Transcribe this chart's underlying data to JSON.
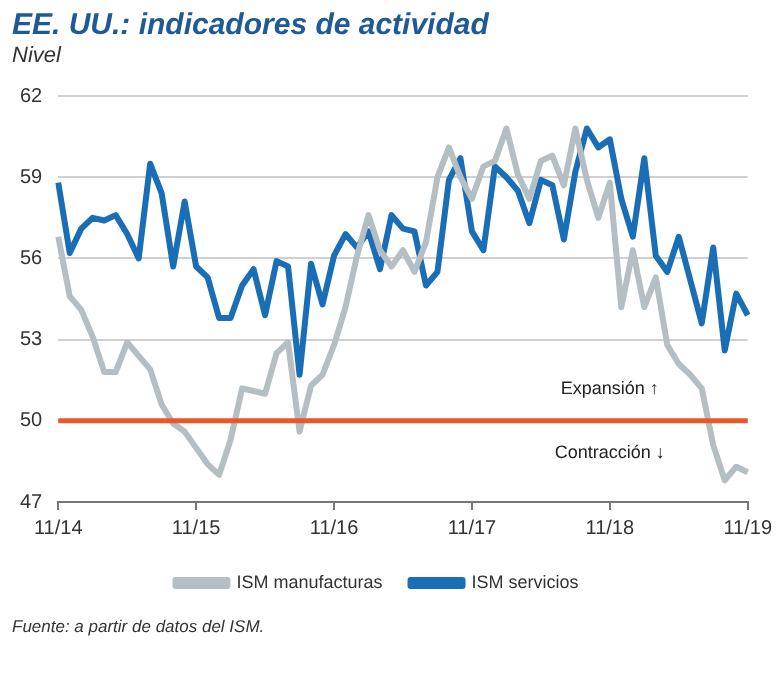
{
  "chart_data": {
    "type": "line",
    "title": "EE. UU.: indicadores de actividad",
    "subtitle": "Nivel",
    "categories": [
      "11/14",
      null,
      null,
      null,
      null,
      null,
      null,
      null,
      null,
      null,
      null,
      null,
      "11/15",
      null,
      null,
      null,
      null,
      null,
      null,
      null,
      null,
      null,
      null,
      null,
      "11/16",
      null,
      null,
      null,
      null,
      null,
      null,
      null,
      null,
      null,
      null,
      null,
      "11/17",
      null,
      null,
      null,
      null,
      null,
      null,
      null,
      null,
      null,
      null,
      null,
      "11/18",
      null,
      null,
      null,
      null,
      null,
      null,
      null,
      null,
      null,
      null,
      null,
      "11/19"
    ],
    "series": [
      {
        "name": "ISM manufacturas",
        "color": "#b4bec3",
        "values": [
          56.8,
          54.6,
          54.1,
          53.1,
          51.8,
          51.8,
          52.9,
          52.4,
          51.9,
          50.6,
          49.9,
          49.6,
          49.0,
          48.4,
          48.0,
          49.3,
          51.2,
          51.1,
          51.0,
          52.5,
          52.9,
          49.6,
          51.3,
          51.7,
          52.8,
          54.2,
          56.1,
          57.6,
          56.3,
          55.7,
          56.3,
          55.5,
          56.6,
          59.0,
          60.1,
          59.0,
          58.2,
          59.4,
          59.6,
          60.8,
          59.1,
          58.2,
          59.6,
          59.8,
          58.7,
          60.8,
          58.9,
          57.5,
          58.8,
          54.2,
          56.3,
          54.2,
          55.3,
          52.8,
          52.1,
          51.7,
          51.2,
          49.1,
          47.8,
          48.3,
          48.1
        ]
      },
      {
        "name": "ISM servicios",
        "color": "#1a6eb5",
        "values": [
          58.8,
          56.2,
          57.1,
          57.5,
          57.4,
          57.6,
          56.9,
          56.0,
          59.5,
          58.4,
          55.7,
          58.1,
          55.7,
          55.3,
          53.8,
          53.8,
          55.0,
          55.6,
          53.9,
          55.9,
          55.7,
          51.7,
          55.8,
          54.3,
          56.1,
          56.9,
          56.4,
          57.0,
          55.6,
          57.6,
          57.1,
          57.0,
          55.0,
          55.5,
          58.9,
          59.7,
          57.0,
          56.3,
          59.4,
          59.0,
          58.5,
          57.3,
          58.9,
          58.7,
          56.7,
          59.2,
          60.8,
          60.1,
          60.4,
          58.2,
          56.8,
          59.7,
          56.1,
          55.5,
          56.8,
          55.2,
          53.6,
          56.4,
          52.6,
          54.7,
          53.9
        ]
      }
    ],
    "ylim": [
      47,
      62
    ],
    "yticks": [
      47,
      50,
      53,
      56,
      59,
      62
    ],
    "grid": "y",
    "legend": "bottom",
    "marker": "none",
    "line_style": "solid",
    "ref_lines": [
      {
        "axis": "y",
        "value": 50,
        "color": "#e8582a"
      }
    ],
    "annotations": [
      "Expansión ↑",
      "Contracción ↓",
      "Fuente: a partir de datos del ISM."
    ]
  }
}
